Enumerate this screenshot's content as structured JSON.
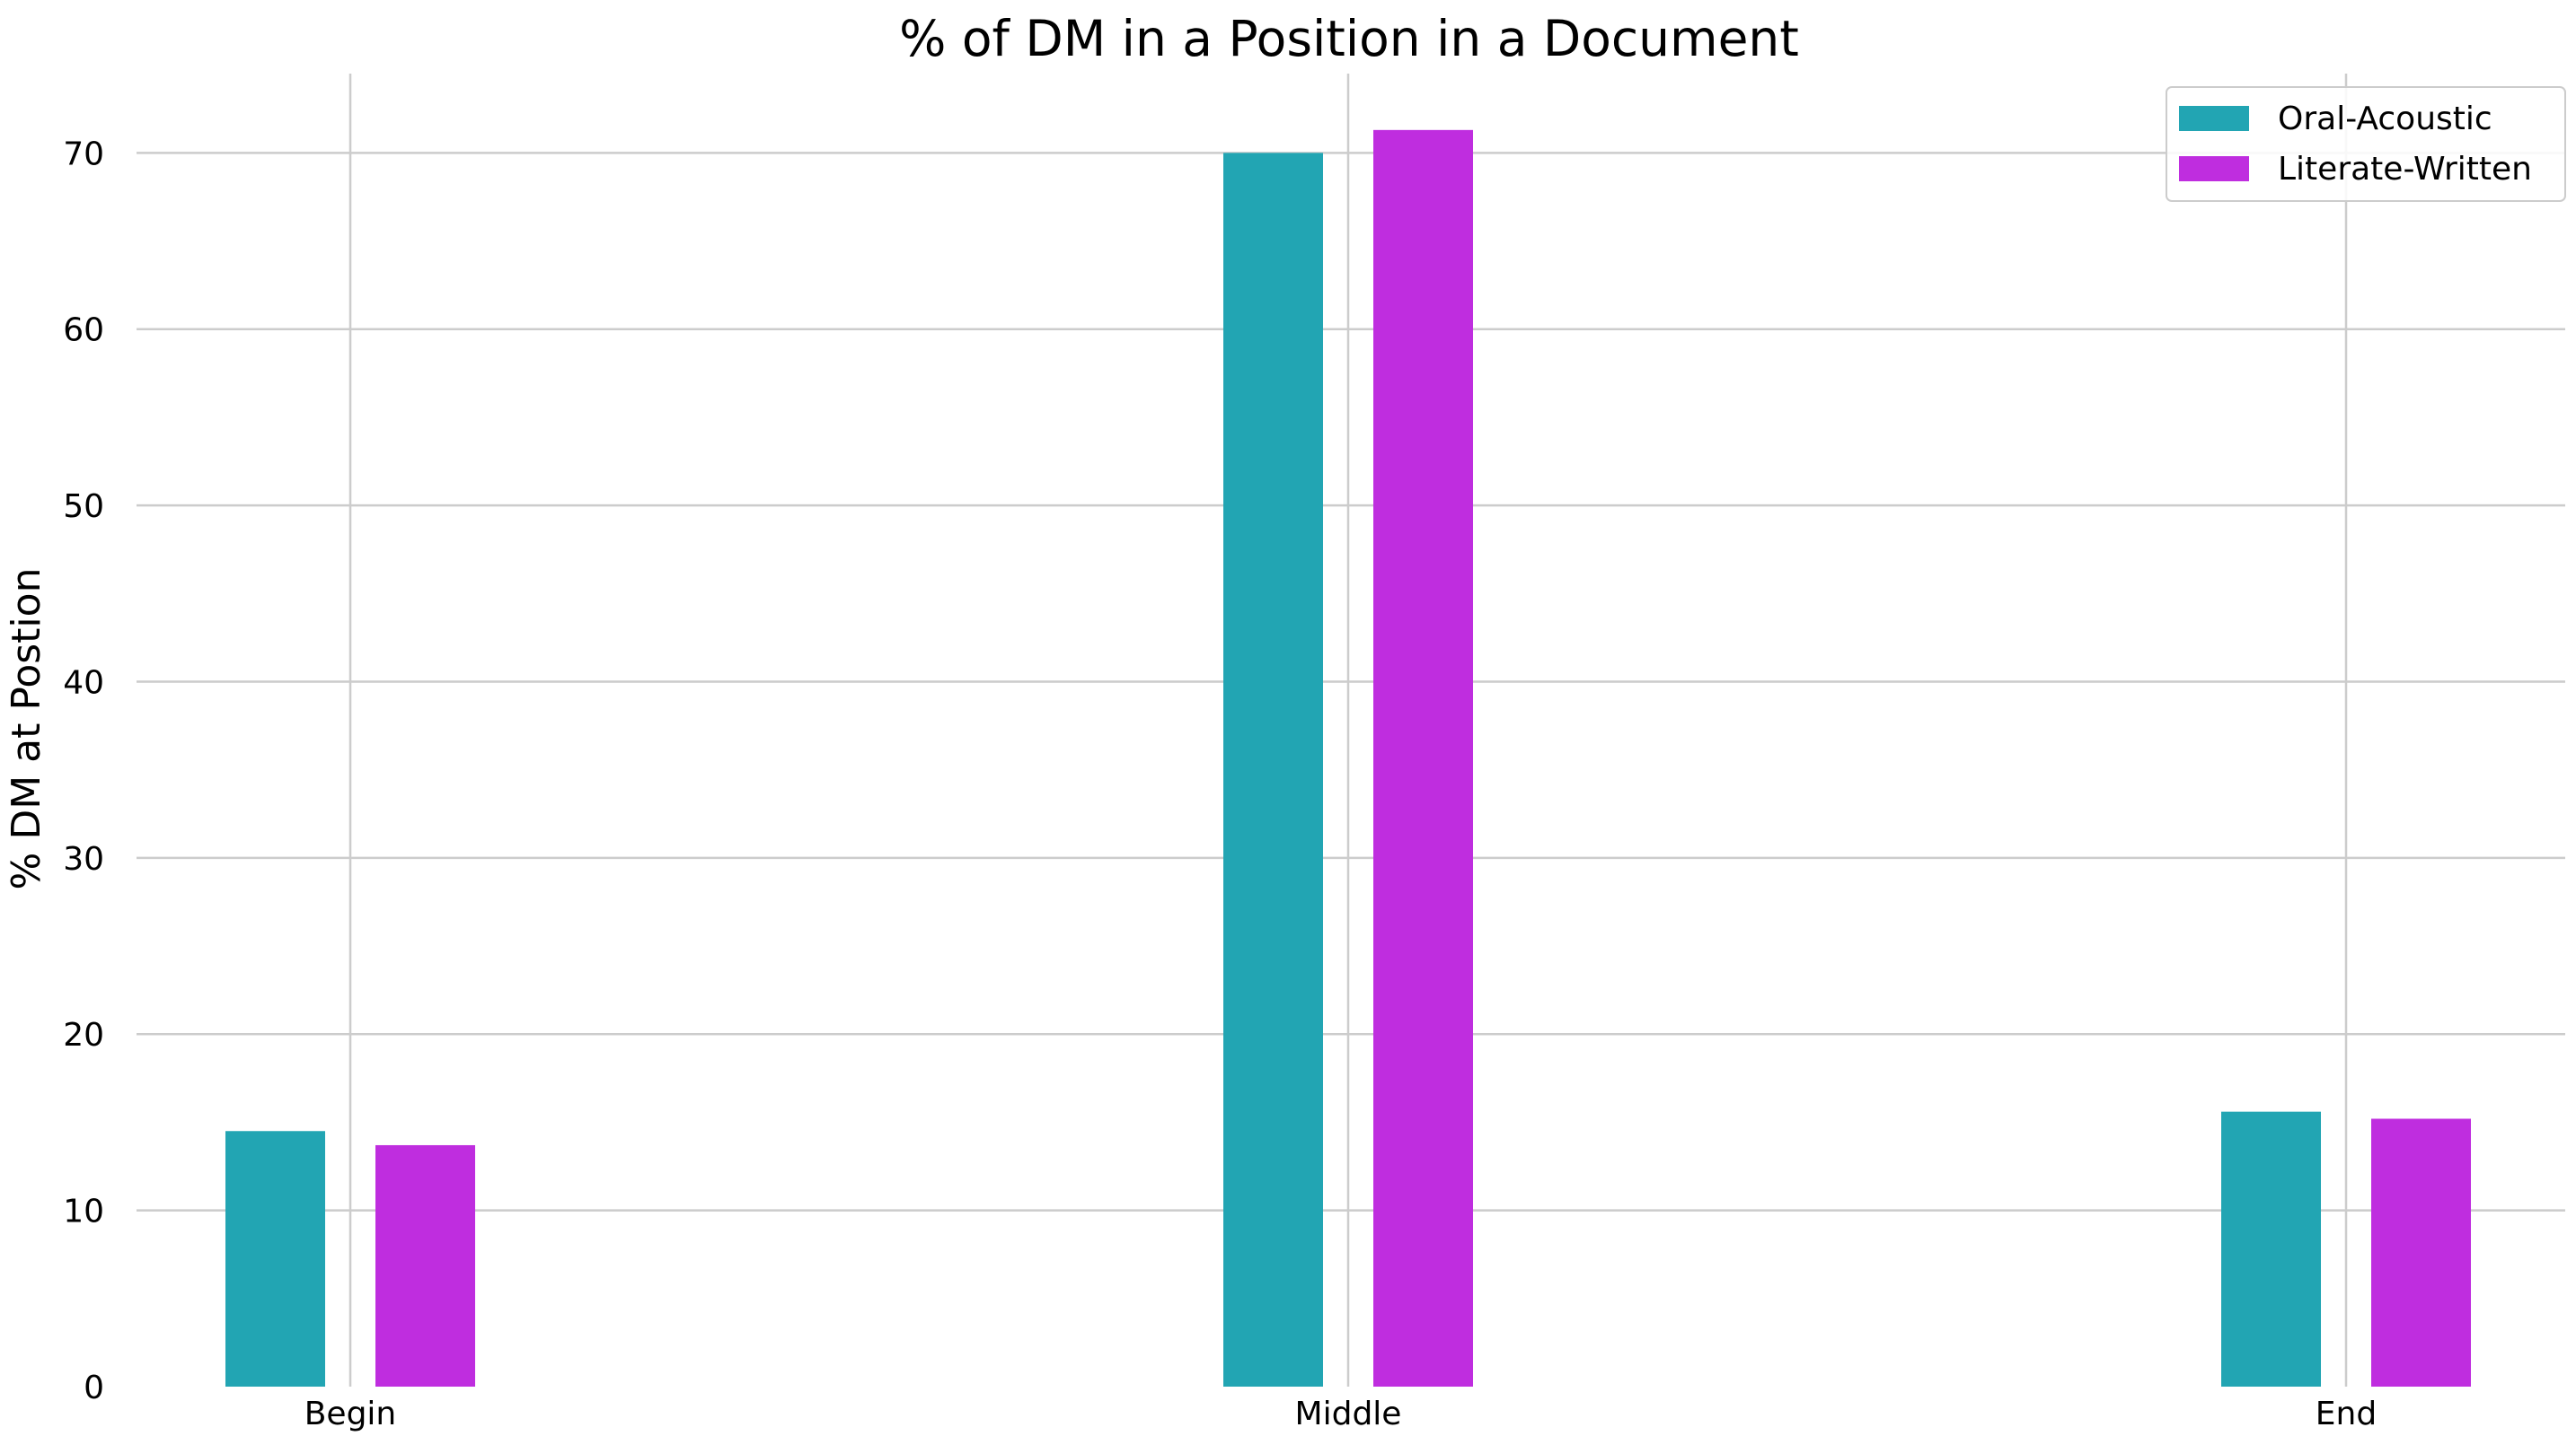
{
  "chart_data": {
    "type": "bar",
    "title": "% of DM in a Position in a Document",
    "xlabel": "",
    "ylabel": "% DM at Postion",
    "categories": [
      "Begin",
      "Middle",
      "End"
    ],
    "ylim": [
      0,
      74.5
    ],
    "yticks": [
      0,
      10,
      20,
      30,
      40,
      50,
      60,
      70
    ],
    "grid": true,
    "legend_position": "top-right",
    "series": [
      {
        "name": "Oral-Acoustic",
        "color": "#22a5b3",
        "values": [
          14.5,
          70.0,
          15.6
        ]
      },
      {
        "name": "Literate-Written",
        "color": "#bf2ddf",
        "values": [
          13.7,
          71.3,
          15.2
        ]
      }
    ]
  }
}
